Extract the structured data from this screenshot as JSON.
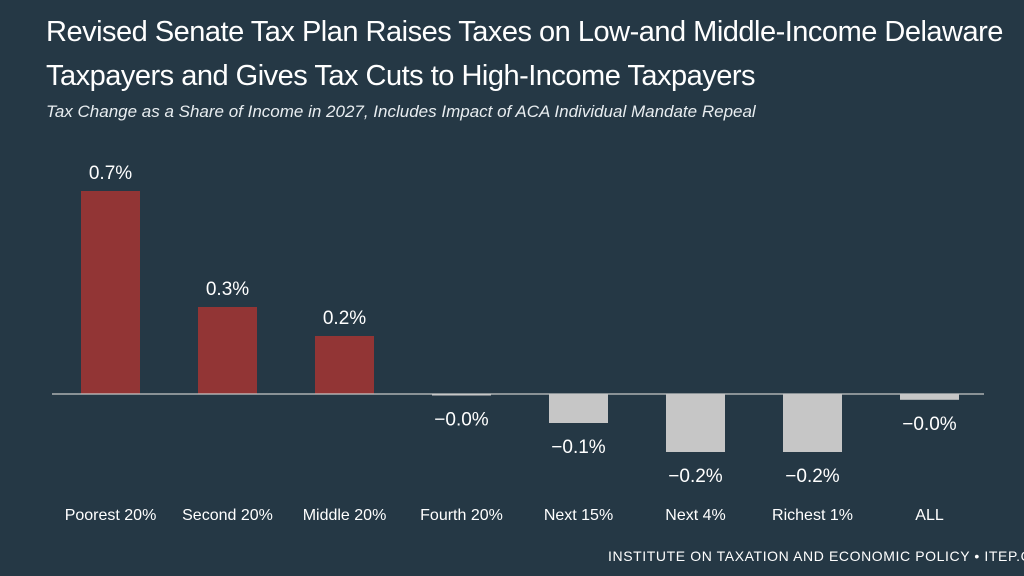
{
  "chart_data": {
    "type": "bar",
    "title": "Revised Senate Tax Plan Raises Taxes on Low-and Middle-Income Delaware Taxpayers and Gives Tax Cuts to High-Income Taxpayers",
    "subtitle": "Tax Change as a Share of Income in 2027, Includes Impact of ACA Individual Mandate Repeal",
    "categories": [
      "Poorest 20%",
      "Second 20%",
      "Middle 20%",
      "Fourth 20%",
      "Next 15%",
      "Next 4%",
      "Richest 1%",
      "ALL"
    ],
    "values": [
      0.7,
      0.3,
      0.2,
      -0.005,
      -0.1,
      -0.2,
      -0.2,
      -0.02
    ],
    "value_labels": [
      "0.7%",
      "0.3%",
      "0.2%",
      "−0.0%",
      "−0.1%",
      "−0.2%",
      "−0.2%",
      "−0.0%"
    ],
    "ylim": [
      -0.2,
      0.7
    ],
    "xlabel": "",
    "ylabel": "",
    "colors": {
      "positive": "#923535",
      "negative": "#c6c6c6",
      "background": "#253845",
      "axis": "#c8c8c8"
    }
  },
  "footer": "INSTITUTE ON TAXATION AND ECONOMIC POLICY • ITEP.ORG"
}
